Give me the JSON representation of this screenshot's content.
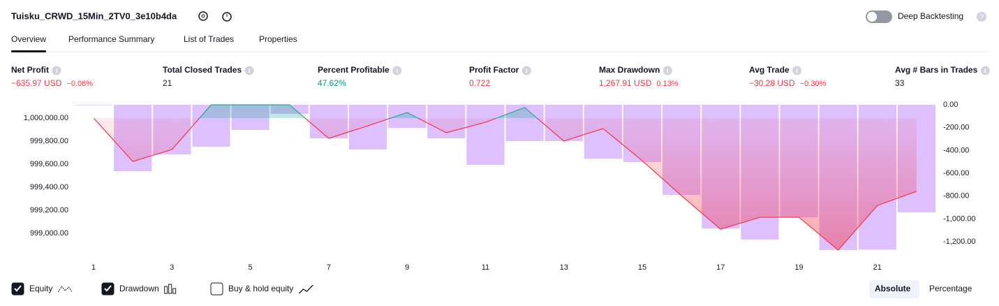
{
  "header": {
    "title": "Tuisku_CRWD_15Min_2TV0_3e10b4da",
    "deep_backtesting": "Deep Backtesting"
  },
  "tabs": [
    "Overview",
    "Performance Summary",
    "List of Trades",
    "Properties"
  ],
  "active_tab": 0,
  "metrics": [
    {
      "label": "Net Profit",
      "value": "−635.97 USD",
      "change": "−0.06%",
      "tone": "negative"
    },
    {
      "label": "Total Closed Trades",
      "value": "21",
      "tone": "neutral"
    },
    {
      "label": "Percent Profitable",
      "value": "47.62%",
      "tone": "positive"
    },
    {
      "label": "Profit Factor",
      "value": "0.722",
      "tone": "negative"
    },
    {
      "label": "Max Drawdown",
      "value": "1,267.91 USD",
      "change": "0.13%",
      "tone": "negative"
    },
    {
      "label": "Avg Trade",
      "value": "−30.28 USD",
      "change": "−0.30%",
      "tone": "negative"
    },
    {
      "label": "Avg # Bars in Trades",
      "value": "33",
      "tone": "neutral"
    }
  ],
  "chart_data": {
    "type": "combo",
    "x": [
      1,
      2,
      3,
      4,
      5,
      6,
      7,
      8,
      9,
      10,
      11,
      12,
      13,
      14,
      15,
      16,
      17,
      18,
      19,
      20,
      21,
      22
    ],
    "xlim": [
      0.5,
      22.5
    ],
    "xticks": [
      1,
      3,
      5,
      7,
      9,
      11,
      13,
      15,
      17,
      19,
      21
    ],
    "ylim": [
      998782,
      1000115
    ],
    "yticks": [
      {
        "value": 999000,
        "label": "999,000.00"
      },
      {
        "value": 999200,
        "label": "999,200.00"
      },
      {
        "value": 999400,
        "label": "999,400.00"
      },
      {
        "value": 999600,
        "label": "999,600.00"
      },
      {
        "value": 999800,
        "label": "999,800.00"
      },
      {
        "value": 1000000,
        "label": "1,000,000.00"
      }
    ],
    "y2lim": [
      -1346,
      0
    ],
    "y2ticks": [
      {
        "value": 0,
        "label": "0.00"
      },
      {
        "value": -200,
        "label": "-200.00"
      },
      {
        "value": -400,
        "label": "-400.00"
      },
      {
        "value": -600,
        "label": "-600.00"
      },
      {
        "value": -800,
        "label": "-800.00"
      },
      {
        "value": -1000,
        "label": "-1,000.00"
      },
      {
        "value": -1200,
        "label": "-1,200.00"
      }
    ],
    "series": [
      {
        "name": "Equity",
        "type": "line",
        "color": "#f23645",
        "color_above": "#22ab94",
        "checked": true,
        "values": [
          1000000,
          999624,
          999727,
          1000115,
          1000115,
          1000115,
          999824,
          999933,
          1000048,
          999873,
          999964,
          1000091,
          999800,
          999909,
          999630,
          999327,
          999036,
          999139,
          999139,
          998855,
          999242,
          999364
        ]
      },
      {
        "name": "Drawdown",
        "type": "bar",
        "axis": "y2",
        "color": "#d6b0ff",
        "checked": true,
        "values": [
          0,
          -581,
          -434,
          -367,
          -220,
          -80,
          -294,
          -391,
          -202,
          -294,
          -526,
          -318,
          -318,
          -471,
          -502,
          -789,
          -1083,
          -1180,
          -985,
          -1272,
          -1268,
          -942
        ]
      }
    ]
  },
  "buy_hold": {
    "label": "Buy & hold equity",
    "checked": false
  },
  "view_modes": [
    "Absolute",
    "Percentage"
  ],
  "active_view": 0
}
